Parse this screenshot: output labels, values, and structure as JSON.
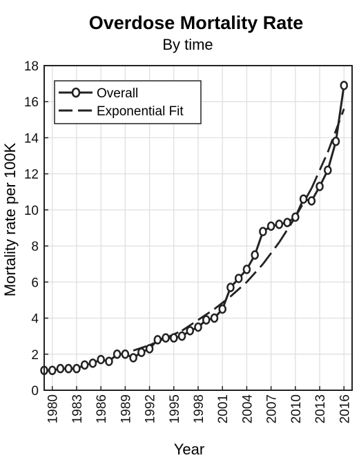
{
  "chart_data": {
    "type": "line",
    "title": "Overdose Mortality Rate",
    "subtitle": "By time",
    "xlabel": "Year",
    "ylabel": "Mortality rate per 100K",
    "xlim": [
      1979,
      2017
    ],
    "ylim": [
      0,
      18
    ],
    "x_ticks": [
      1980,
      1983,
      1986,
      1989,
      1992,
      1995,
      1998,
      2001,
      2004,
      2007,
      2010,
      2013,
      2016
    ],
    "y_ticks": [
      0,
      2,
      4,
      6,
      8,
      10,
      12,
      14,
      16,
      18
    ],
    "grid": true,
    "legend_position": "top-left",
    "colors": {
      "line": "#222222",
      "grid": "#dddddd",
      "axis": "#222222"
    },
    "x": [
      1979,
      1980,
      1981,
      1982,
      1983,
      1984,
      1985,
      1986,
      1987,
      1988,
      1989,
      1990,
      1991,
      1992,
      1993,
      1994,
      1995,
      1996,
      1997,
      1998,
      1999,
      2000,
      2001,
      2002,
      2003,
      2004,
      2005,
      2006,
      2007,
      2008,
      2009,
      2010,
      2011,
      2012,
      2013,
      2014,
      2015,
      2016
    ],
    "series": [
      {
        "name": "Overall",
        "style": "solid-circle",
        "values": [
          1.1,
          1.1,
          1.2,
          1.2,
          1.2,
          1.4,
          1.5,
          1.7,
          1.6,
          2.0,
          2.0,
          1.8,
          2.1,
          2.3,
          2.8,
          2.9,
          2.9,
          3.0,
          3.3,
          3.5,
          3.9,
          4.0,
          4.5,
          5.7,
          6.2,
          6.7,
          7.5,
          8.8,
          9.1,
          9.2,
          9.3,
          9.6,
          10.6,
          10.5,
          11.3,
          12.2,
          13.8,
          16.9
        ]
      },
      {
        "name": "Exponential Fit",
        "style": "dashed",
        "x": [
          1990,
          1992,
          1994,
          1996,
          1998,
          2000,
          2002,
          2004,
          2006,
          2008,
          2010,
          2012,
          2014,
          2016
        ],
        "values": [
          2.2,
          2.5,
          2.9,
          3.3,
          3.9,
          4.5,
          5.2,
          6.0,
          7.0,
          8.2,
          9.6,
          11.2,
          13.2,
          15.6
        ]
      }
    ]
  }
}
